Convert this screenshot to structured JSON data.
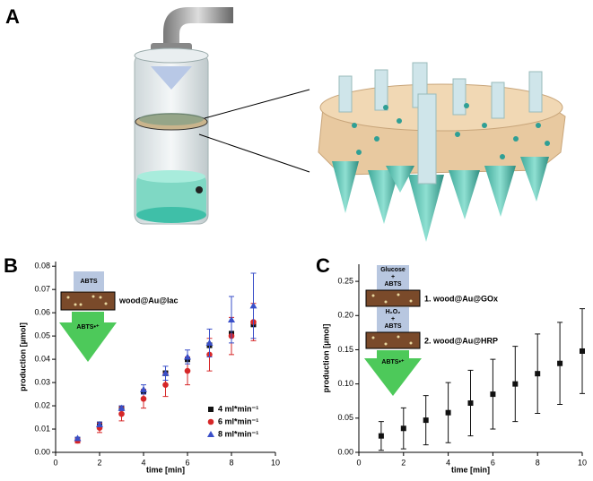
{
  "panel_a": {
    "label": "A"
  },
  "chart_data": [
    {
      "type": "scatter",
      "panel": "B",
      "x_label": "time [min]",
      "y_label": "production [µmol]",
      "x": [
        1,
        2,
        3,
        4,
        5,
        6,
        7,
        8,
        9
      ],
      "xlim": [
        0,
        10
      ],
      "xticks": [
        0,
        2,
        4,
        6,
        8,
        10
      ],
      "ylim": [
        0,
        0.082
      ],
      "yticks": [
        {
          "value": 0,
          "label": "0.00"
        },
        0.01,
        0.02,
        0.03,
        0.04,
        0.05,
        0.06,
        0.07,
        0.08
      ],
      "legend": "lower right",
      "series": [
        {
          "name": "4 ml*min⁻¹",
          "color": "#111111",
          "marker": "square",
          "values": [
            0.0055,
            0.012,
            0.019,
            0.026,
            0.034,
            0.04,
            0.046,
            0.051,
            0.055
          ],
          "errors": [
            0.0005,
            0.001,
            0.001,
            0.001,
            0.001,
            0.001,
            0.001,
            0.001,
            0.001
          ]
        },
        {
          "name": "6 ml*min⁻¹",
          "color": "#d62728",
          "marker": "circle",
          "values": [
            0.005,
            0.0105,
            0.0165,
            0.023,
            0.029,
            0.035,
            0.042,
            0.05,
            0.056
          ],
          "errors": [
            0.001,
            0.002,
            0.003,
            0.004,
            0.005,
            0.006,
            0.007,
            0.008,
            0.008
          ]
        },
        {
          "name": "8 ml*min⁻¹",
          "color": "#3a4fc8",
          "marker": "triangle",
          "values": [
            0.006,
            0.012,
            0.019,
            0.027,
            0.034,
            0.041,
            0.047,
            0.057,
            0.063
          ],
          "errors": [
            0.0005,
            0.001,
            0.001,
            0.002,
            0.003,
            0.003,
            0.006,
            0.01,
            0.014
          ]
        }
      ],
      "inset": {
        "input": "ABTS",
        "material": "wood@Au@lac",
        "output": "ABTS•⁺"
      }
    },
    {
      "type": "scatter",
      "panel": "C",
      "x_label": "time [min]",
      "y_label": "production [µmol]",
      "x": [
        1,
        2,
        3,
        4,
        5,
        6,
        7,
        8,
        9,
        10
      ],
      "xlim": [
        0,
        10
      ],
      "xticks": [
        0,
        2,
        4,
        6,
        8,
        10
      ],
      "ylim": [
        0,
        0.275
      ],
      "yticks": [
        {
          "value": 0,
          "label": "0.00"
        },
        0.05,
        {
          "value": 0.1,
          "label": "0.10"
        },
        0.15,
        {
          "value": 0.2,
          "label": "0.20"
        },
        0.25
      ],
      "series": [
        {
          "color": "#111111",
          "marker": "square",
          "values": [
            0.024,
            0.035,
            0.047,
            0.058,
            0.072,
            0.085,
            0.1,
            0.115,
            0.13,
            0.148
          ],
          "errors": [
            0.021,
            0.03,
            0.036,
            0.044,
            0.048,
            0.051,
            0.055,
            0.058,
            0.06,
            0.062
          ]
        }
      ],
      "inset": {
        "input_1": "Glucose",
        "plus_1": "+",
        "input_1b": "ABTS",
        "material_1": "1. wood@Au@GOx",
        "input_2": "H₂O₂",
        "plus_2": "+",
        "input_2b": "ABTS",
        "material_2": "2. wood@Au@HRP",
        "output": "ABTS•⁺"
      }
    }
  ]
}
